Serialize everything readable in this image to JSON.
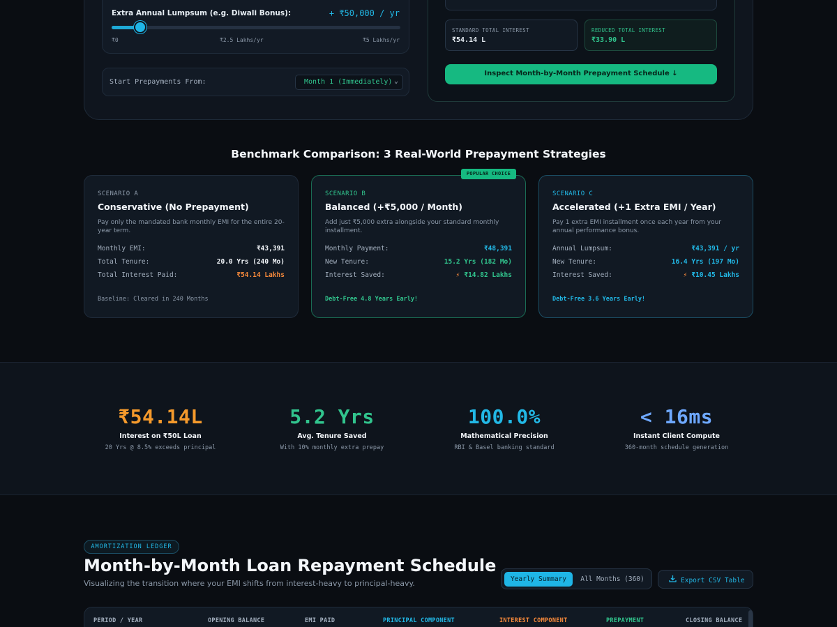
{
  "calculator": {
    "lumpsum_label": "Extra Annual Lumpsum (e.g. Diwali Bonus):",
    "lumpsum_value": "+ ₹50,000 / yr",
    "slider_fraction": 0.1,
    "ticks": [
      "₹0",
      "₹2.5 Lakhs/yr",
      "₹5 Lakhs/yr"
    ],
    "start_label": "Start Prepayments From:",
    "start_value": "Month 1 (Immediately)",
    "standard_interest_label": "STANDARD TOTAL INTEREST",
    "standard_interest_value": "₹54.14 L",
    "reduced_interest_label": "REDUCED TOTAL INTEREST",
    "reduced_interest_value": "₹33.90 L",
    "inspect_button": "Inspect Month-by-Month Prepayment Schedule ↓"
  },
  "benchmark": {
    "title": "Benchmark Comparison: 3 Real-World Prepayment Strategies",
    "popular_badge": "POPULAR CHOICE",
    "scenarios": [
      {
        "tag": "SCENARIO A",
        "title": "Conservative (No Prepayment)",
        "desc": "Pay only the mandated bank monthly EMI for the entire 20-year term.",
        "rows": [
          {
            "k": "Monthly EMI:",
            "v": "₹43,391"
          },
          {
            "k": "Total Tenure:",
            "v": "20.0 Yrs (240 Mo)"
          },
          {
            "k": "Total Interest Paid:",
            "v": "₹54.14 Lakhs"
          }
        ],
        "foot": "Baseline: Cleared in 240 Months"
      },
      {
        "tag": "SCENARIO B",
        "title": "Balanced (+₹5,000 / Month)",
        "desc": "Add just ₹5,000 extra alongside your standard monthly installment.",
        "rows": [
          {
            "k": "Monthly Payment:",
            "v": "₹48,391"
          },
          {
            "k": "New Tenure:",
            "v": "15.2 Yrs (182 Mo)"
          },
          {
            "k": "Interest Saved:",
            "v": "₹14.82 Lakhs"
          }
        ],
        "foot": "Debt-Free 4.8 Years Early!"
      },
      {
        "tag": "SCENARIO C",
        "title": "Accelerated (+1 Extra EMI / Year)",
        "desc": "Pay 1 extra EMI installment once each year from your annual performance bonus.",
        "rows": [
          {
            "k": "Annual Lumpsum:",
            "v": "₹43,391 / yr"
          },
          {
            "k": "New Tenure:",
            "v": "16.4 Yrs (197 Mo)"
          },
          {
            "k": "Interest Saved:",
            "v": "₹10.45 Lakhs"
          }
        ],
        "foot": "Debt-Free 3.6 Years Early!"
      }
    ]
  },
  "stats": [
    {
      "big": "₹54.14L",
      "cap": "Interest on ₹50L Loan",
      "sub": "20 Yrs @ 8.5% exceeds principal",
      "color": "#f59a2c"
    },
    {
      "big": "5.2 Yrs",
      "cap": "Avg. Tenure Saved",
      "sub": "With 10% monthly extra prepay",
      "color": "#31c48d"
    },
    {
      "big": "100.0%",
      "cap": "Mathematical Precision",
      "sub": "RBI & Basel banking standard",
      "color": "#22b8e6"
    },
    {
      "big": "< 16ms",
      "cap": "Instant Client Compute",
      "sub": "360-month schedule generation",
      "color": "#6ea8ff"
    }
  ],
  "ledger": {
    "pill": "AMORTIZATION LEDGER",
    "title": "Month-by-Month Loan Repayment Schedule",
    "subtitle": "Visualizing the transition where your EMI shifts from interest-heavy to principal-heavy.",
    "toggle_on": "Yearly Summary",
    "toggle_off": "All Months (360)",
    "export": "Export CSV Table",
    "columns": [
      "PERIOD / YEAR",
      "OPENING BALANCE",
      "EMI PAID",
      "PRINCIPAL COMPONENT",
      "INTEREST COMPONENT",
      "PREPAYMENT",
      "CLOSING BALANCE"
    ]
  },
  "colors": {
    "accent_cyan": "#22b8e6",
    "accent_green": "#31c48d",
    "accent_orange": "#f6893b"
  }
}
